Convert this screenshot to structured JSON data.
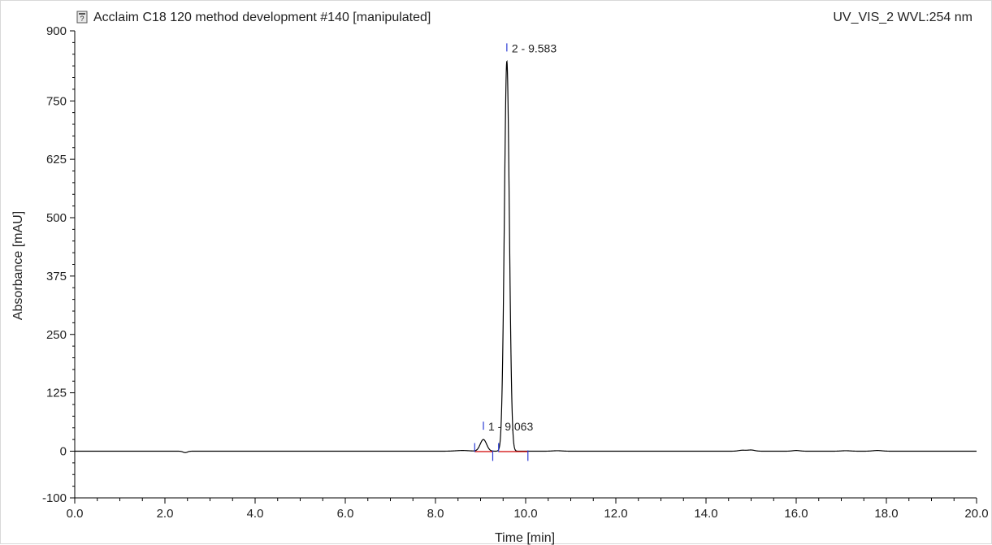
{
  "chart_data": {
    "type": "line",
    "title": "Acclaim C18 120 method development #140 [manipulated]",
    "channel": "UV_VIS_2 WVL:254 nm",
    "xlabel": "Time [min]",
    "ylabel": "Absorbance [mAU]",
    "xlim": [
      0,
      20
    ],
    "ylim": [
      -100,
      900
    ],
    "x_ticks": [
      0.0,
      2.0,
      4.0,
      6.0,
      8.0,
      10.0,
      12.0,
      14.0,
      16.0,
      18.0,
      20.0
    ],
    "x_tick_labels": [
      "0.0",
      "2.0",
      "4.0",
      "6.0",
      "8.0",
      "10.0",
      "12.0",
      "14.0",
      "16.0",
      "18.0",
      "20.0"
    ],
    "y_ticks": [
      -100,
      0,
      125,
      250,
      375,
      500,
      625,
      750,
      900
    ],
    "y_tick_labels": [
      "-100",
      "0",
      "125",
      "250",
      "375",
      "500",
      "625",
      "750",
      "900"
    ],
    "grid": false,
    "series": [
      {
        "color": "#000000",
        "baseline": 0,
        "baseline_noise": [
          {
            "t": 2.45,
            "h": -3,
            "w": 0.05
          },
          {
            "t": 14.8,
            "h": 2,
            "w": 0.08
          },
          {
            "t": 15.0,
            "h": 2.5,
            "w": 0.08
          },
          {
            "t": 16.0,
            "h": 1.5,
            "w": 0.08
          },
          {
            "t": 17.1,
            "h": 1,
            "w": 0.1
          },
          {
            "t": 17.8,
            "h": 1.5,
            "w": 0.1
          },
          {
            "t": 8.6,
            "h": 1.5,
            "w": 0.15
          },
          {
            "t": 10.7,
            "h": 1,
            "w": 0.1
          }
        ],
        "peaks": [
          {
            "label": "1 - 9.063",
            "rt": 9.063,
            "height": 25,
            "width_sigma": 0.07
          },
          {
            "label": "2 - 9.583",
            "rt": 9.583,
            "height": 835,
            "width_sigma": 0.055
          }
        ]
      }
    ],
    "peak_marks": [
      {
        "peak": "1 - 9.063",
        "start": 8.87,
        "end": 9.27,
        "apex_tick": 9.063
      },
      {
        "peak": "2 - 9.583",
        "start": 9.4,
        "end": 10.05,
        "apex_tick": 9.583
      }
    ],
    "integration_baseline_color": "#d00000",
    "peak_marker_color": "#2b3bd6"
  }
}
